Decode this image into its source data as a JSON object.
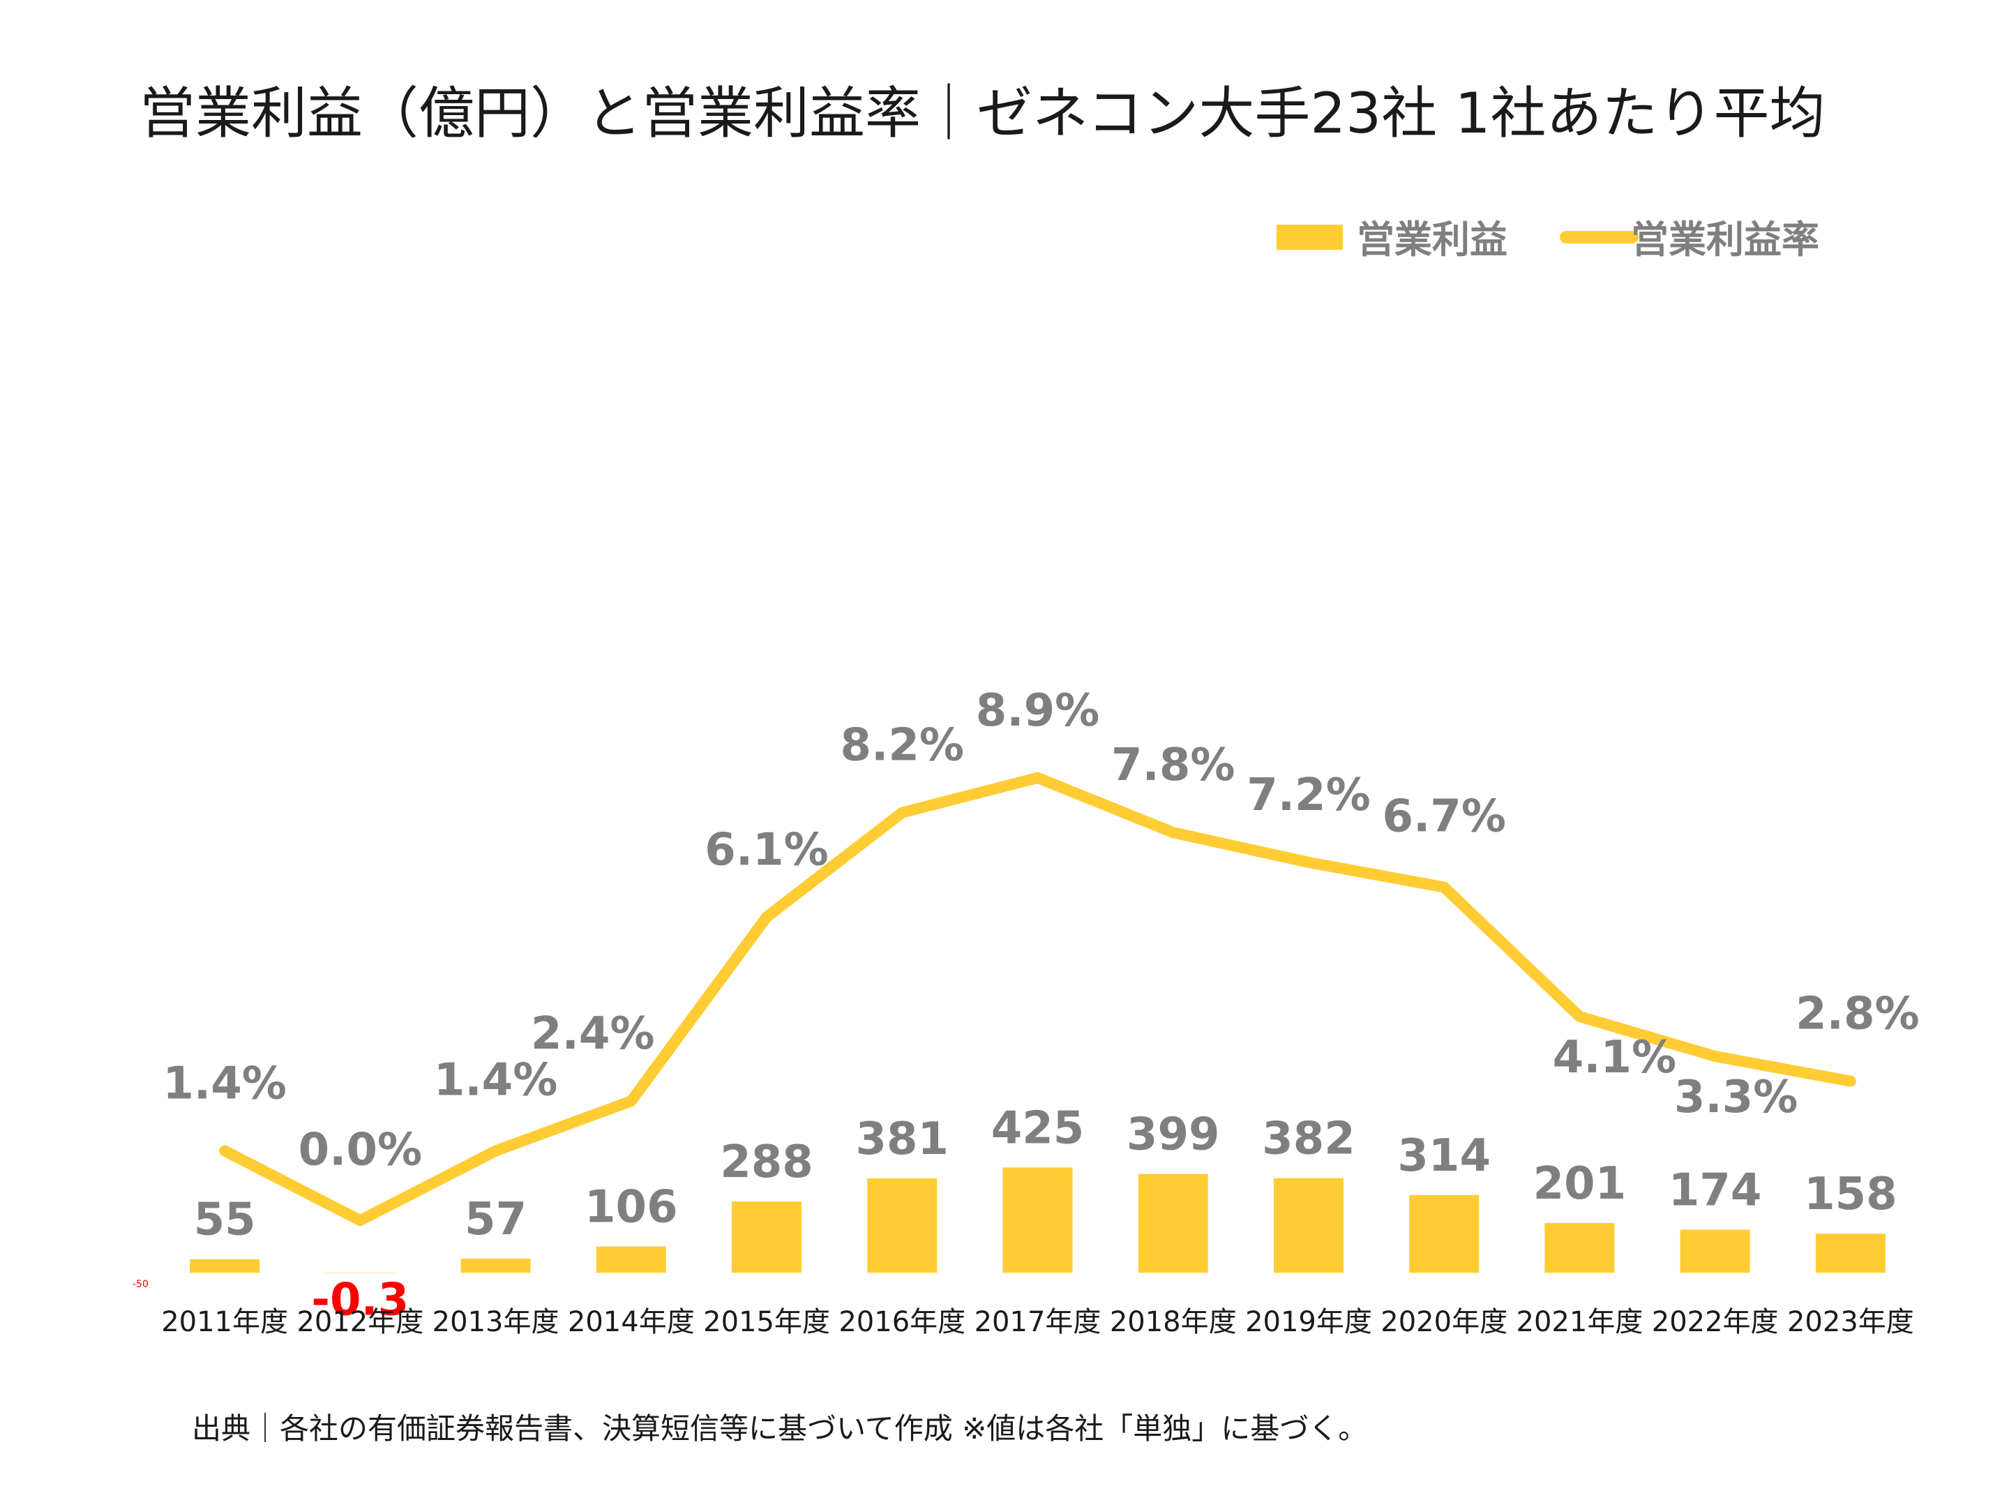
{
  "chart_data": {
    "type": "bar+line",
    "title": "営業利益（億円）と営業利益率｜ゼネコン大手23社 1社あたり平均",
    "categories": [
      "2011年度",
      "2012年度",
      "2013年度",
      "2014年度",
      "2015年度",
      "2016年度",
      "2017年度",
      "2018年度",
      "2019年度",
      "2020年度",
      "2021年度",
      "2022年度",
      "2023年度"
    ],
    "series": [
      {
        "name": "営業利益",
        "type": "bar",
        "axis": "left",
        "values": [
          55,
          -0.3,
          57,
          106,
          288,
          381,
          425,
          399,
          382,
          314,
          201,
          174,
          158
        ],
        "labels": [
          "55",
          "-0.3",
          "57",
          "106",
          "288",
          "381",
          "425",
          "399",
          "382",
          "314",
          "201",
          "174",
          "158"
        ],
        "color": "#FFCC33",
        "negative_label_color": "#FF0000"
      },
      {
        "name": "営業利益率",
        "type": "line",
        "axis": "right",
        "values": [
          1.4,
          0.0,
          1.4,
          2.4,
          6.1,
          8.2,
          8.9,
          7.8,
          7.2,
          6.7,
          4.1,
          3.3,
          2.8
        ],
        "labels": [
          "1.4%",
          "0.0%",
          "1.4%",
          "2.4%",
          "6.1%",
          "8.2%",
          "8.9%",
          "7.8%",
          "7.2%",
          "6.7%",
          "4.1%",
          "3.3%",
          "2.8%"
        ],
        "color": "#FFCC33"
      }
    ],
    "ylim_left": [
      -50,
      4450
    ],
    "ylim_right": [
      -1.3,
      21.1
    ],
    "y_left_min_label": "-50",
    "legend_position": "top-right",
    "grid": false,
    "source_note": "出典｜各社の有価証券報告書、決算短信等に基づいて作成 ※値は各社「単独」に基づく。"
  }
}
